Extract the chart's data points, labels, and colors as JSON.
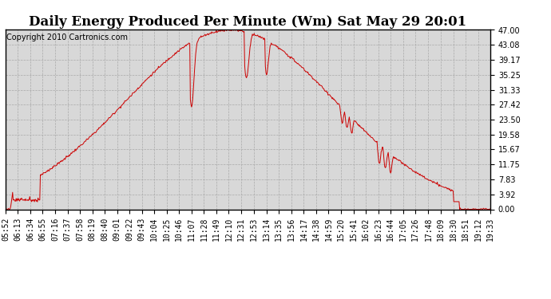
{
  "title": "Daily Energy Produced Per Minute (Wm) Sat May 29 20:01",
  "copyright": "Copyright 2010 Cartronics.com",
  "line_color": "#cc0000",
  "bg_color": "#ffffff",
  "plot_bg_color": "#d8d8d8",
  "grid_color": "#aaaaaa",
  "yticks": [
    0.0,
    3.92,
    7.83,
    11.75,
    15.67,
    19.58,
    23.5,
    27.42,
    31.33,
    35.25,
    39.17,
    43.08,
    47.0
  ],
  "ylim": [
    0.0,
    47.0
  ],
  "xtick_labels": [
    "05:52",
    "06:13",
    "06:34",
    "06:55",
    "07:16",
    "07:37",
    "07:58",
    "08:19",
    "08:40",
    "09:01",
    "09:22",
    "09:43",
    "10:04",
    "10:25",
    "10:46",
    "11:07",
    "11:28",
    "11:49",
    "12:10",
    "12:31",
    "12:53",
    "13:14",
    "13:35",
    "13:56",
    "14:17",
    "14:38",
    "14:59",
    "15:20",
    "15:41",
    "16:02",
    "16:23",
    "16:44",
    "17:05",
    "17:26",
    "17:48",
    "18:09",
    "18:30",
    "18:51",
    "19:12",
    "19:33"
  ],
  "title_fontsize": 12,
  "copyright_fontsize": 7,
  "tick_fontsize": 7,
  "line_width": 0.7
}
